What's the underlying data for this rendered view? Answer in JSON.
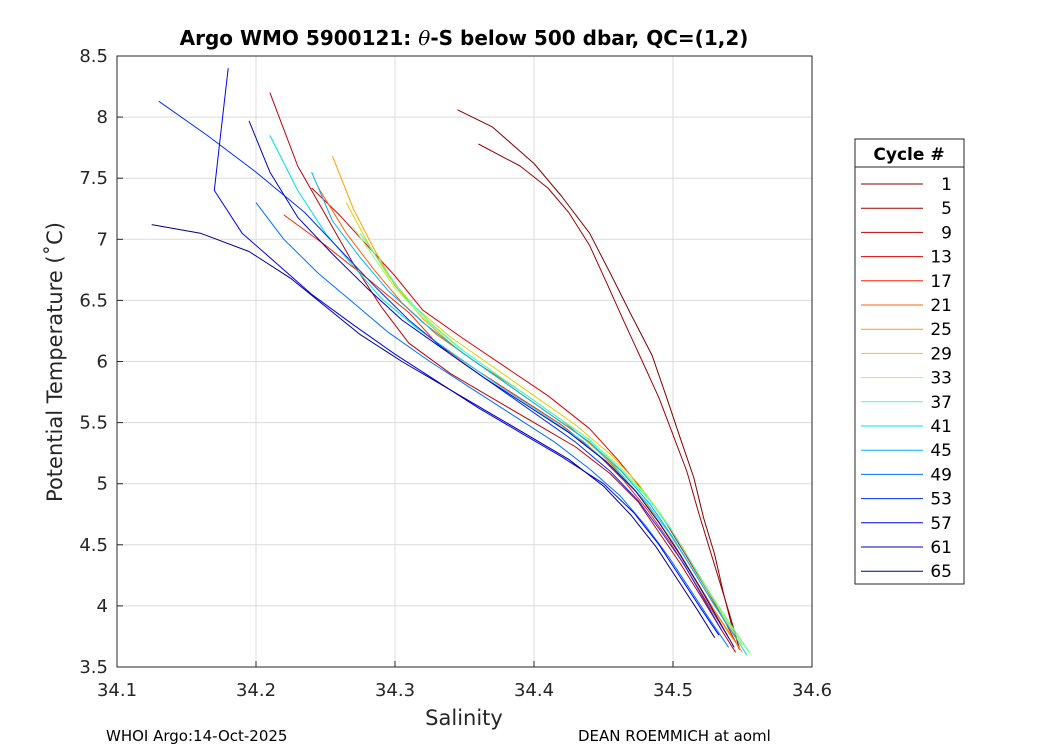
{
  "chart_data": {
    "type": "line",
    "title_prefix": "Argo WMO 5900121: ",
    "title_symbol": "θ",
    "title_suffix": "-S below 500 dbar,  QC=(1,2)",
    "xlabel": "Salinity",
    "ylabel": "Potential Temperature (˚C)",
    "xlim": [
      34.1,
      34.6
    ],
    "ylim": [
      3.5,
      8.5
    ],
    "grid": true,
    "xticks": [
      "34.1",
      "34.2",
      "34.3",
      "34.4",
      "34.5",
      "34.6"
    ],
    "yticks": [
      "3.5",
      "4",
      "4.5",
      "5",
      "5.5",
      "6",
      "6.5",
      "7",
      "7.5",
      "8",
      "8.5"
    ],
    "legend_title": "Cycle #",
    "legend_position": "right-outside",
    "series": [
      {
        "name": "1",
        "color": "#800000",
        "points": [
          [
            34.345,
            8.06
          ],
          [
            34.37,
            7.92
          ],
          [
            34.4,
            7.62
          ],
          [
            34.42,
            7.35
          ],
          [
            34.44,
            7.05
          ],
          [
            34.455,
            6.72
          ],
          [
            34.47,
            6.38
          ],
          [
            34.485,
            6.05
          ],
          [
            34.495,
            5.72
          ],
          [
            34.505,
            5.38
          ],
          [
            34.515,
            5.05
          ],
          [
            34.522,
            4.72
          ],
          [
            34.53,
            4.42
          ],
          [
            34.536,
            4.12
          ],
          [
            34.542,
            3.85
          ],
          [
            34.548,
            3.65
          ]
        ]
      },
      {
        "name": "5",
        "color": "#a00000",
        "points": [
          [
            34.36,
            7.78
          ],
          [
            34.39,
            7.6
          ],
          [
            34.41,
            7.42
          ],
          [
            34.425,
            7.22
          ],
          [
            34.44,
            6.95
          ],
          [
            34.452,
            6.65
          ],
          [
            34.465,
            6.32
          ],
          [
            34.478,
            6.0
          ],
          [
            34.49,
            5.7
          ],
          [
            34.5,
            5.4
          ],
          [
            34.51,
            5.1
          ],
          [
            34.518,
            4.78
          ],
          [
            34.526,
            4.48
          ],
          [
            34.534,
            4.18
          ],
          [
            34.541,
            3.92
          ],
          [
            34.547,
            3.68
          ]
        ]
      },
      {
        "name": "9",
        "color": "#c00000",
        "points": [
          [
            34.21,
            8.2
          ],
          [
            34.23,
            7.6
          ],
          [
            34.25,
            7.2
          ],
          [
            34.27,
            6.8
          ],
          [
            34.29,
            6.45
          ],
          [
            34.31,
            6.15
          ],
          [
            34.34,
            5.9
          ],
          [
            34.37,
            5.7
          ],
          [
            34.4,
            5.5
          ],
          [
            34.43,
            5.3
          ],
          [
            34.455,
            5.08
          ],
          [
            34.475,
            4.85
          ],
          [
            34.49,
            4.6
          ],
          [
            34.505,
            4.35
          ],
          [
            34.52,
            4.08
          ],
          [
            34.535,
            3.8
          ],
          [
            34.545,
            3.62
          ]
        ]
      },
      {
        "name": "13",
        "color": "#e00000",
        "points": [
          [
            34.24,
            7.42
          ],
          [
            34.26,
            7.2
          ],
          [
            34.28,
            6.95
          ],
          [
            34.3,
            6.7
          ],
          [
            34.32,
            6.42
          ],
          [
            34.35,
            6.18
          ],
          [
            34.38,
            5.95
          ],
          [
            34.41,
            5.72
          ],
          [
            34.44,
            5.45
          ],
          [
            34.46,
            5.2
          ],
          [
            34.478,
            4.95
          ],
          [
            34.495,
            4.68
          ],
          [
            34.51,
            4.4
          ],
          [
            34.525,
            4.12
          ],
          [
            34.538,
            3.86
          ],
          [
            34.548,
            3.64
          ]
        ]
      },
      {
        "name": "17",
        "color": "#ff2000",
        "points": [
          [
            34.22,
            7.2
          ],
          [
            34.25,
            6.95
          ],
          [
            34.28,
            6.68
          ],
          [
            34.31,
            6.4
          ],
          [
            34.33,
            6.15
          ],
          [
            34.36,
            5.92
          ],
          [
            34.39,
            5.7
          ],
          [
            34.42,
            5.48
          ],
          [
            34.445,
            5.25
          ],
          [
            34.465,
            5.02
          ],
          [
            34.482,
            4.78
          ],
          [
            34.498,
            4.52
          ],
          [
            34.512,
            4.26
          ],
          [
            34.527,
            3.98
          ],
          [
            34.54,
            3.74
          ]
        ]
      },
      {
        "name": "21",
        "color": "#ff6000",
        "points": [
          [
            34.245,
            7.42
          ],
          [
            34.265,
            7.05
          ],
          [
            34.285,
            6.75
          ],
          [
            34.305,
            6.48
          ],
          [
            34.33,
            6.22
          ],
          [
            34.36,
            5.98
          ],
          [
            34.39,
            5.76
          ],
          [
            34.42,
            5.52
          ],
          [
            34.445,
            5.28
          ],
          [
            34.465,
            5.05
          ],
          [
            34.483,
            4.8
          ],
          [
            34.5,
            4.52
          ],
          [
            34.515,
            4.24
          ],
          [
            34.53,
            3.96
          ],
          [
            34.544,
            3.72
          ]
        ]
      },
      {
        "name": "25",
        "color": "#ffa000",
        "points": [
          [
            34.255,
            7.68
          ],
          [
            34.27,
            7.25
          ],
          [
            34.285,
            6.92
          ],
          [
            34.3,
            6.62
          ],
          [
            34.32,
            6.35
          ],
          [
            34.345,
            6.1
          ],
          [
            34.375,
            5.86
          ],
          [
            34.405,
            5.62
          ],
          [
            34.435,
            5.38
          ],
          [
            34.458,
            5.14
          ],
          [
            34.478,
            4.88
          ],
          [
            34.495,
            4.6
          ],
          [
            34.51,
            4.32
          ],
          [
            34.525,
            4.04
          ],
          [
            34.54,
            3.78
          ],
          [
            34.55,
            3.62
          ]
        ]
      },
      {
        "name": "29",
        "color": "#e0d000",
        "points": [
          [
            34.265,
            7.3
          ],
          [
            34.28,
            6.98
          ],
          [
            34.295,
            6.7
          ],
          [
            34.315,
            6.44
          ],
          [
            34.34,
            6.2
          ],
          [
            34.37,
            5.96
          ],
          [
            34.4,
            5.72
          ],
          [
            34.43,
            5.48
          ],
          [
            34.455,
            5.24
          ],
          [
            34.475,
            5.0
          ],
          [
            34.492,
            4.74
          ],
          [
            34.508,
            4.46
          ],
          [
            34.522,
            4.18
          ],
          [
            34.536,
            3.92
          ],
          [
            34.55,
            3.68
          ]
        ]
      },
      {
        "name": "33",
        "color": "#a0ff60",
        "points": [
          [
            34.27,
            7.1
          ],
          [
            34.285,
            6.85
          ],
          [
            34.3,
            6.6
          ],
          [
            34.32,
            6.36
          ],
          [
            34.345,
            6.12
          ],
          [
            34.375,
            5.88
          ],
          [
            34.405,
            5.64
          ],
          [
            34.435,
            5.4
          ],
          [
            34.46,
            5.16
          ],
          [
            34.48,
            4.92
          ],
          [
            34.497,
            4.66
          ],
          [
            34.512,
            4.38
          ],
          [
            34.527,
            4.1
          ],
          [
            34.542,
            3.84
          ],
          [
            34.556,
            3.6
          ]
        ]
      },
      {
        "name": "37",
        "color": "#40ffc0",
        "points": [
          [
            34.275,
            7.05
          ],
          [
            34.29,
            6.8
          ],
          [
            34.305,
            6.56
          ],
          [
            34.325,
            6.32
          ],
          [
            34.35,
            6.08
          ],
          [
            34.38,
            5.84
          ],
          [
            34.41,
            5.6
          ],
          [
            34.44,
            5.36
          ],
          [
            34.462,
            5.12
          ],
          [
            34.482,
            4.88
          ],
          [
            34.499,
            4.62
          ],
          [
            34.514,
            4.34
          ],
          [
            34.529,
            4.06
          ],
          [
            34.544,
            3.8
          ],
          [
            34.555,
            3.62
          ]
        ]
      },
      {
        "name": "41",
        "color": "#00e0e0",
        "points": [
          [
            34.21,
            7.85
          ],
          [
            34.23,
            7.4
          ],
          [
            34.25,
            7.05
          ],
          [
            34.27,
            6.78
          ],
          [
            34.29,
            6.52
          ],
          [
            34.315,
            6.28
          ],
          [
            34.345,
            6.04
          ],
          [
            34.375,
            5.8
          ],
          [
            34.405,
            5.58
          ],
          [
            34.435,
            5.35
          ],
          [
            34.46,
            5.1
          ],
          [
            34.48,
            4.86
          ],
          [
            34.497,
            4.6
          ],
          [
            34.513,
            4.32
          ],
          [
            34.528,
            4.04
          ],
          [
            34.543,
            3.78
          ],
          [
            34.553,
            3.6
          ]
        ]
      },
      {
        "name": "45",
        "color": "#00b0ff",
        "points": [
          [
            34.24,
            7.55
          ],
          [
            34.255,
            7.15
          ],
          [
            34.275,
            6.85
          ],
          [
            34.295,
            6.58
          ],
          [
            34.32,
            6.32
          ],
          [
            34.35,
            6.06
          ],
          [
            34.38,
            5.82
          ],
          [
            34.41,
            5.58
          ],
          [
            34.44,
            5.34
          ],
          [
            34.463,
            5.1
          ],
          [
            34.483,
            4.84
          ],
          [
            34.5,
            4.56
          ],
          [
            34.515,
            4.28
          ],
          [
            34.53,
            4.0
          ],
          [
            34.545,
            3.74
          ]
        ]
      },
      {
        "name": "49",
        "color": "#0070ff",
        "points": [
          [
            34.2,
            7.3
          ],
          [
            34.22,
            7.0
          ],
          [
            34.245,
            6.72
          ],
          [
            34.27,
            6.48
          ],
          [
            34.295,
            6.24
          ],
          [
            34.325,
            6.0
          ],
          [
            34.355,
            5.78
          ],
          [
            34.385,
            5.56
          ],
          [
            34.415,
            5.34
          ],
          [
            34.44,
            5.12
          ],
          [
            34.462,
            4.9
          ],
          [
            34.48,
            4.66
          ],
          [
            34.497,
            4.4
          ],
          [
            34.512,
            4.14
          ],
          [
            34.527,
            3.88
          ],
          [
            34.54,
            3.66
          ]
        ]
      },
      {
        "name": "53",
        "color": "#0030ff",
        "points": [
          [
            34.13,
            8.13
          ],
          [
            34.165,
            7.85
          ],
          [
            34.2,
            7.55
          ],
          [
            34.235,
            7.22
          ],
          [
            34.26,
            6.92
          ],
          [
            34.285,
            6.62
          ],
          [
            34.31,
            6.34
          ],
          [
            34.34,
            6.06
          ],
          [
            34.37,
            5.82
          ],
          [
            34.4,
            5.58
          ],
          [
            34.43,
            5.34
          ],
          [
            34.455,
            5.1
          ],
          [
            34.475,
            4.86
          ],
          [
            34.492,
            4.6
          ],
          [
            34.508,
            4.34
          ],
          [
            34.522,
            4.06
          ],
          [
            34.535,
            3.8
          ]
        ]
      },
      {
        "name": "57",
        "color": "#0000ff",
        "points": [
          [
            34.18,
            8.4
          ],
          [
            34.175,
            7.9
          ],
          [
            34.17,
            7.4
          ],
          [
            34.19,
            7.05
          ],
          [
            34.215,
            6.8
          ],
          [
            34.24,
            6.55
          ],
          [
            34.27,
            6.3
          ],
          [
            34.3,
            6.06
          ],
          [
            34.33,
            5.84
          ],
          [
            34.36,
            5.62
          ],
          [
            34.39,
            5.42
          ],
          [
            34.42,
            5.22
          ],
          [
            34.45,
            5.0
          ],
          [
            34.472,
            4.76
          ],
          [
            34.49,
            4.5
          ],
          [
            34.505,
            4.24
          ],
          [
            34.52,
            3.98
          ],
          [
            34.533,
            3.76
          ]
        ]
      },
      {
        "name": "61",
        "color": "#0000c0",
        "points": [
          [
            34.195,
            7.97
          ],
          [
            34.21,
            7.55
          ],
          [
            34.23,
            7.18
          ],
          [
            34.255,
            6.88
          ],
          [
            34.28,
            6.6
          ],
          [
            34.305,
            6.34
          ],
          [
            34.335,
            6.1
          ],
          [
            34.365,
            5.86
          ],
          [
            34.395,
            5.64
          ],
          [
            34.425,
            5.42
          ],
          [
            34.452,
            5.18
          ],
          [
            34.473,
            4.94
          ],
          [
            34.49,
            4.68
          ],
          [
            34.505,
            4.42
          ],
          [
            34.52,
            4.14
          ],
          [
            34.533,
            3.88
          ],
          [
            34.544,
            3.66
          ]
        ]
      },
      {
        "name": "65",
        "color": "#000090",
        "points": [
          [
            34.125,
            7.12
          ],
          [
            34.16,
            7.05
          ],
          [
            34.195,
            6.9
          ],
          [
            34.225,
            6.68
          ],
          [
            34.25,
            6.45
          ],
          [
            34.275,
            6.22
          ],
          [
            34.305,
            6.0
          ],
          [
            34.335,
            5.8
          ],
          [
            34.365,
            5.6
          ],
          [
            34.395,
            5.4
          ],
          [
            34.425,
            5.2
          ],
          [
            34.45,
            4.98
          ],
          [
            34.47,
            4.74
          ],
          [
            34.488,
            4.48
          ],
          [
            34.503,
            4.22
          ],
          [
            34.518,
            3.96
          ],
          [
            34.53,
            3.74
          ]
        ]
      }
    ]
  },
  "footer": {
    "left": "WHOI Argo:14-Oct-2025",
    "right": "DEAN ROEMMICH at aoml"
  }
}
